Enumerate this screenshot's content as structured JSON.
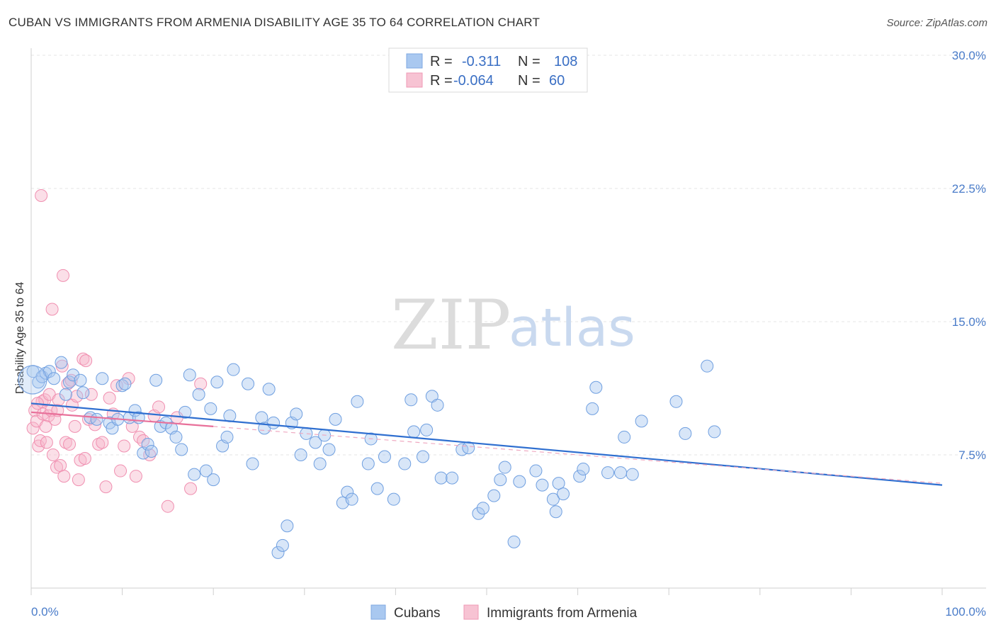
{
  "header": {
    "title": "CUBAN VS IMMIGRANTS FROM ARMENIA DISABILITY AGE 35 TO 64 CORRELATION CHART",
    "source": "Source: ZipAtlas.com"
  },
  "watermark": {
    "zip": "ZIP",
    "atlas": "atlas"
  },
  "legend": {
    "rows": [
      {
        "r_label": "R =",
        "r_value": "-0.311",
        "n_label": "N =",
        "n_value": "108",
        "color": "#a9c8f0"
      },
      {
        "r_label": "R =",
        "r_value": "-0.064",
        "n_label": "N =",
        "n_value": "60",
        "color": "#f7b8cb"
      }
    ]
  },
  "bottom_legend": [
    "Cubans",
    "Immigrants from Armenia"
  ],
  "chart_data": {
    "type": "scatter",
    "title": "CUBAN VS IMMIGRANTS FROM ARMENIA DISABILITY AGE 35 TO 64 CORRELATION CHART",
    "xlabel": "",
    "ylabel": "Disability Age 35 to 64",
    "xlim": [
      0,
      100
    ],
    "ylim": [
      0,
      30
    ],
    "x_tick_labels": [
      "0.0%",
      "100.0%"
    ],
    "y_ticks": [
      7.5,
      15.0,
      22.5,
      30.0
    ],
    "y_tick_labels": [
      "7.5%",
      "15.0%",
      "22.5%",
      "30.0%"
    ],
    "grid": "horizontal dashed",
    "legend_position": "top-center",
    "colors": {
      "cubans": "#6f9fe0",
      "armenia": "#f08fb0",
      "cubans_line": "#2f6fd0",
      "armenia_line": "#e8709a"
    },
    "series": [
      {
        "name": "Cubans",
        "trend": {
          "x": [
            0,
            100
          ],
          "y": [
            10.4,
            5.8
          ]
        },
        "points": [
          [
            0.2,
            12.2
          ],
          [
            0.8,
            11.6
          ],
          [
            1.2,
            11.9
          ],
          [
            1.6,
            12.1
          ],
          [
            2.0,
            12.2
          ],
          [
            2.5,
            11.8
          ],
          [
            3.3,
            12.7
          ],
          [
            3.8,
            10.9
          ],
          [
            4.2,
            11.6
          ],
          [
            4.6,
            12.0
          ],
          [
            5.4,
            11.7
          ],
          [
            5.7,
            11.0
          ],
          [
            6.5,
            9.6
          ],
          [
            7.2,
            9.5
          ],
          [
            7.8,
            11.8
          ],
          [
            8.6,
            9.3
          ],
          [
            8.9,
            9.0
          ],
          [
            9.5,
            9.5
          ],
          [
            10.0,
            11.4
          ],
          [
            10.3,
            11.5
          ],
          [
            10.8,
            9.6
          ],
          [
            11.4,
            10.0
          ],
          [
            11.8,
            9.6
          ],
          [
            12.3,
            7.6
          ],
          [
            12.8,
            8.1
          ],
          [
            13.2,
            7.7
          ],
          [
            13.7,
            11.7
          ],
          [
            14.2,
            9.1
          ],
          [
            14.8,
            9.3
          ],
          [
            15.4,
            9.0
          ],
          [
            15.9,
            8.5
          ],
          [
            16.5,
            7.8
          ],
          [
            16.9,
            9.9
          ],
          [
            17.4,
            12.0
          ],
          [
            17.9,
            6.4
          ],
          [
            18.4,
            10.9
          ],
          [
            19.2,
            6.6
          ],
          [
            19.7,
            10.1
          ],
          [
            20.0,
            6.1
          ],
          [
            20.4,
            11.6
          ],
          [
            21.0,
            8.0
          ],
          [
            21.5,
            8.5
          ],
          [
            21.8,
            9.7
          ],
          [
            22.2,
            12.3
          ],
          [
            23.8,
            11.5
          ],
          [
            24.3,
            7.0
          ],
          [
            25.3,
            9.6
          ],
          [
            25.6,
            9.0
          ],
          [
            26.1,
            11.2
          ],
          [
            26.6,
            9.3
          ],
          [
            27.1,
            2.0
          ],
          [
            27.6,
            2.4
          ],
          [
            28.1,
            3.5
          ],
          [
            28.6,
            9.3
          ],
          [
            29.1,
            9.8
          ],
          [
            29.6,
            7.5
          ],
          [
            30.2,
            8.7
          ],
          [
            31.2,
            8.2
          ],
          [
            31.7,
            7.0
          ],
          [
            32.2,
            8.6
          ],
          [
            32.7,
            7.8
          ],
          [
            33.4,
            9.5
          ],
          [
            34.2,
            4.8
          ],
          [
            34.7,
            5.4
          ],
          [
            35.2,
            5.0
          ],
          [
            35.8,
            10.5
          ],
          [
            37.0,
            7.0
          ],
          [
            37.3,
            8.4
          ],
          [
            38.0,
            5.6
          ],
          [
            38.8,
            7.4
          ],
          [
            39.8,
            5.0
          ],
          [
            41.0,
            7.0
          ],
          [
            41.7,
            10.6
          ],
          [
            42.0,
            8.8
          ],
          [
            43.0,
            7.4
          ],
          [
            43.4,
            8.9
          ],
          [
            44.0,
            10.8
          ],
          [
            44.6,
            10.3
          ],
          [
            45.0,
            6.2
          ],
          [
            46.2,
            6.2
          ],
          [
            47.3,
            7.8
          ],
          [
            48.0,
            7.9
          ],
          [
            49.1,
            4.2
          ],
          [
            49.6,
            4.5
          ],
          [
            50.8,
            5.2
          ],
          [
            51.5,
            6.1
          ],
          [
            52.0,
            6.8
          ],
          [
            53.0,
            2.6
          ],
          [
            53.6,
            6.0
          ],
          [
            55.4,
            6.6
          ],
          [
            56.1,
            5.8
          ],
          [
            57.3,
            5.0
          ],
          [
            57.6,
            4.3
          ],
          [
            57.9,
            5.9
          ],
          [
            58.4,
            5.3
          ],
          [
            60.2,
            6.3
          ],
          [
            60.6,
            6.7
          ],
          [
            61.6,
            10.1
          ],
          [
            62.0,
            11.3
          ],
          [
            63.3,
            6.5
          ],
          [
            64.7,
            6.5
          ],
          [
            65.1,
            8.5
          ],
          [
            66.0,
            6.4
          ],
          [
            67.0,
            9.4
          ],
          [
            70.8,
            10.5
          ],
          [
            71.8,
            8.7
          ],
          [
            74.2,
            12.5
          ],
          [
            75.0,
            8.8
          ]
        ]
      },
      {
        "name": "Immigrants from Armenia",
        "trend": {
          "x": [
            0,
            20
          ],
          "y": [
            9.9,
            9.1
          ]
        },
        "points": [
          [
            0.2,
            9.0
          ],
          [
            0.4,
            10.0
          ],
          [
            0.6,
            9.4
          ],
          [
            0.8,
            8.0
          ],
          [
            1.0,
            8.3
          ],
          [
            1.2,
            10.5
          ],
          [
            1.3,
            9.8
          ],
          [
            1.5,
            10.6
          ],
          [
            1.7,
            8.2
          ],
          [
            1.9,
            9.7
          ],
          [
            2.0,
            10.9
          ],
          [
            2.2,
            10.0
          ],
          [
            2.4,
            7.5
          ],
          [
            2.6,
            9.5
          ],
          [
            2.8,
            6.8
          ],
          [
            3.0,
            10.6
          ],
          [
            3.2,
            6.9
          ],
          [
            3.4,
            12.5
          ],
          [
            3.6,
            6.3
          ],
          [
            3.8,
            8.2
          ],
          [
            4.0,
            11.5
          ],
          [
            4.2,
            8.1
          ],
          [
            4.5,
            10.3
          ],
          [
            4.8,
            9.1
          ],
          [
            5.0,
            10.8
          ],
          [
            5.2,
            6.1
          ],
          [
            5.4,
            7.2
          ],
          [
            5.7,
            12.9
          ],
          [
            6.0,
            12.8
          ],
          [
            6.3,
            9.5
          ],
          [
            6.6,
            10.9
          ],
          [
            7.0,
            9.2
          ],
          [
            7.4,
            8.1
          ],
          [
            7.8,
            8.2
          ],
          [
            8.2,
            5.7
          ],
          [
            8.6,
            10.7
          ],
          [
            9.0,
            9.8
          ],
          [
            9.4,
            11.4
          ],
          [
            9.8,
            6.6
          ],
          [
            10.2,
            8.0
          ],
          [
            10.7,
            11.8
          ],
          [
            11.1,
            9.1
          ],
          [
            11.5,
            6.3
          ],
          [
            11.9,
            8.5
          ],
          [
            12.3,
            8.3
          ],
          [
            13.0,
            7.5
          ],
          [
            13.5,
            9.7
          ],
          [
            14.0,
            10.2
          ],
          [
            15.0,
            4.6
          ],
          [
            16.0,
            9.6
          ],
          [
            17.5,
            5.6
          ],
          [
            18.6,
            11.5
          ],
          [
            1.1,
            22.1
          ],
          [
            3.5,
            17.6
          ],
          [
            2.3,
            15.7
          ],
          [
            0.7,
            10.4
          ],
          [
            1.6,
            9.1
          ],
          [
            2.9,
            10.0
          ],
          [
            4.4,
            11.7
          ],
          [
            5.9,
            7.3
          ]
        ]
      }
    ]
  }
}
